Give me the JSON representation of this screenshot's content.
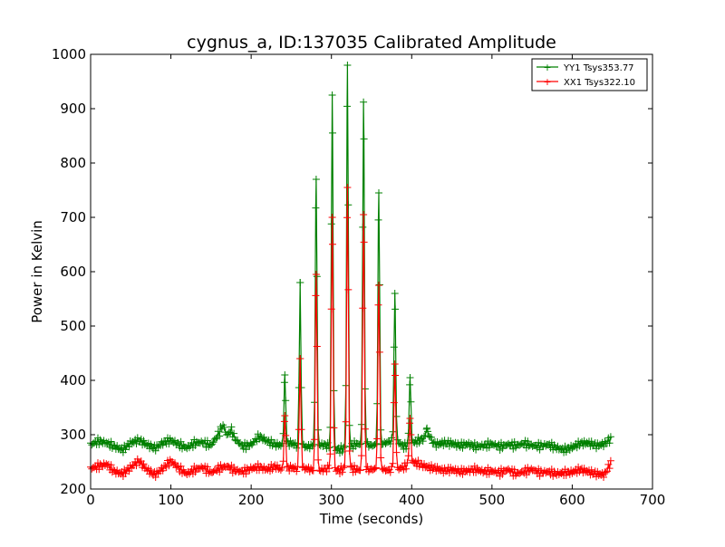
{
  "chart_data": {
    "type": "line",
    "title": "cygnus_a, ID:137035 Calibrated Amplitude",
    "xlabel": "Time (seconds)",
    "ylabel": "Power in Kelvin",
    "xlim": [
      0,
      700
    ],
    "ylim": [
      200,
      1000
    ],
    "xticks": [
      0,
      100,
      200,
      300,
      400,
      500,
      600,
      700
    ],
    "yticks": [
      200,
      300,
      400,
      500,
      600,
      700,
      800,
      900,
      1000
    ],
    "grid": false,
    "legend_position": "top-right",
    "marker": "+",
    "series": [
      {
        "name": "YY1 Tsys353.77",
        "color": "#008000",
        "baseline": [
          [
            0,
            282
          ],
          [
            10,
            288
          ],
          [
            20,
            285
          ],
          [
            30,
            278
          ],
          [
            40,
            272
          ],
          [
            50,
            285
          ],
          [
            60,
            290
          ],
          [
            70,
            282
          ],
          [
            80,
            275
          ],
          [
            90,
            285
          ],
          [
            100,
            290
          ],
          [
            110,
            282
          ],
          [
            120,
            276
          ],
          [
            130,
            285
          ],
          [
            140,
            286
          ],
          [
            150,
            280
          ],
          [
            160,
            303
          ],
          [
            165,
            318
          ],
          [
            170,
            298
          ],
          [
            175,
            310
          ],
          [
            180,
            292
          ],
          [
            190,
            278
          ],
          [
            200,
            282
          ],
          [
            210,
            297
          ],
          [
            220,
            288
          ],
          [
            230,
            282
          ],
          [
            240,
            280
          ],
          [
            250,
            285
          ],
          [
            260,
            278
          ],
          [
            270,
            278
          ],
          [
            280,
            280
          ],
          [
            290,
            282
          ],
          [
            300,
            276
          ],
          [
            310,
            272
          ],
          [
            320,
            276
          ],
          [
            330,
            283
          ],
          [
            340,
            282
          ],
          [
            350,
            280
          ],
          [
            360,
            282
          ],
          [
            370,
            286
          ],
          [
            380,
            290
          ],
          [
            390,
            278
          ],
          [
            400,
            284
          ],
          [
            410,
            290
          ],
          [
            420,
            296
          ],
          [
            430,
            282
          ],
          [
            440,
            285
          ],
          [
            450,
            284
          ],
          [
            460,
            280
          ],
          [
            470,
            283
          ],
          [
            480,
            278
          ],
          [
            490,
            280
          ],
          [
            500,
            283
          ],
          [
            510,
            278
          ],
          [
            520,
            282
          ],
          [
            530,
            280
          ],
          [
            540,
            284
          ],
          [
            550,
            280
          ],
          [
            560,
            279
          ],
          [
            570,
            282
          ],
          [
            580,
            276
          ],
          [
            590,
            272
          ],
          [
            600,
            277
          ],
          [
            610,
            284
          ],
          [
            620,
            285
          ],
          [
            630,
            280
          ],
          [
            640,
            283
          ],
          [
            648,
            292
          ]
        ],
        "peaks": [
          [
            242,
            410
          ],
          [
            261,
            580
          ],
          [
            281,
            770
          ],
          [
            301,
            925
          ],
          [
            320,
            980
          ],
          [
            340,
            912
          ],
          [
            359,
            745
          ],
          [
            379,
            560
          ],
          [
            398,
            405
          ],
          [
            419,
            312
          ]
        ]
      },
      {
        "name": "XX1 Tsys322.10",
        "color": "#ff0000",
        "baseline": [
          [
            0,
            238
          ],
          [
            10,
            242
          ],
          [
            20,
            246
          ],
          [
            30,
            232
          ],
          [
            40,
            228
          ],
          [
            50,
            240
          ],
          [
            60,
            252
          ],
          [
            70,
            236
          ],
          [
            80,
            226
          ],
          [
            90,
            238
          ],
          [
            100,
            252
          ],
          [
            110,
            238
          ],
          [
            120,
            228
          ],
          [
            130,
            236
          ],
          [
            140,
            240
          ],
          [
            150,
            230
          ],
          [
            160,
            238
          ],
          [
            170,
            242
          ],
          [
            180,
            234
          ],
          [
            190,
            232
          ],
          [
            200,
            238
          ],
          [
            210,
            240
          ],
          [
            220,
            236
          ],
          [
            230,
            242
          ],
          [
            240,
            234
          ],
          [
            250,
            240
          ],
          [
            260,
            236
          ],
          [
            270,
            238
          ],
          [
            280,
            232
          ],
          [
            290,
            236
          ],
          [
            300,
            238
          ],
          [
            310,
            234
          ],
          [
            320,
            240
          ],
          [
            330,
            236
          ],
          [
            340,
            234
          ],
          [
            350,
            236
          ],
          [
            360,
            238
          ],
          [
            370,
            234
          ],
          [
            380,
            236
          ],
          [
            390,
            240
          ],
          [
            400,
            250
          ],
          [
            410,
            246
          ],
          [
            420,
            240
          ],
          [
            430,
            238
          ],
          [
            440,
            234
          ],
          [
            450,
            236
          ],
          [
            460,
            232
          ],
          [
            470,
            234
          ],
          [
            480,
            236
          ],
          [
            490,
            232
          ],
          [
            500,
            233
          ],
          [
            510,
            230
          ],
          [
            520,
            236
          ],
          [
            530,
            228
          ],
          [
            540,
            232
          ],
          [
            550,
            236
          ],
          [
            560,
            230
          ],
          [
            570,
            232
          ],
          [
            580,
            228
          ],
          [
            590,
            230
          ],
          [
            600,
            231
          ],
          [
            610,
            236
          ],
          [
            620,
            232
          ],
          [
            630,
            228
          ],
          [
            640,
            226
          ],
          [
            648,
            248
          ]
        ],
        "peaks": [
          [
            242,
            335
          ],
          [
            261,
            440
          ],
          [
            281,
            595
          ],
          [
            301,
            700
          ],
          [
            320,
            755
          ],
          [
            340,
            705
          ],
          [
            359,
            575
          ],
          [
            379,
            430
          ],
          [
            398,
            330
          ]
        ]
      }
    ]
  }
}
